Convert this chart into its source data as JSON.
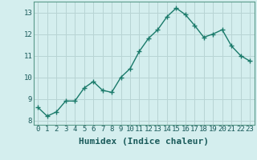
{
  "x": [
    0,
    1,
    2,
    3,
    4,
    5,
    6,
    7,
    8,
    9,
    10,
    11,
    12,
    13,
    14,
    15,
    16,
    17,
    18,
    19,
    20,
    21,
    22,
    23
  ],
  "y": [
    8.6,
    8.2,
    8.4,
    8.9,
    8.9,
    9.5,
    9.8,
    9.4,
    9.3,
    10.0,
    10.4,
    11.2,
    11.8,
    12.2,
    12.8,
    13.2,
    12.9,
    12.4,
    11.85,
    12.0,
    12.2,
    11.45,
    11.0,
    10.75
  ],
  "line_color": "#1a7a6a",
  "marker": "+",
  "marker_size": 4,
  "marker_lw": 1.0,
  "bg_color": "#d4eeee",
  "grid_color": "#b8d4d4",
  "xlabel": "Humidex (Indice chaleur)",
  "ylim": [
    7.8,
    13.5
  ],
  "xlim": [
    -0.5,
    23.5
  ],
  "yticks": [
    8,
    9,
    10,
    11,
    12,
    13
  ],
  "xticks": [
    0,
    1,
    2,
    3,
    4,
    5,
    6,
    7,
    8,
    9,
    10,
    11,
    12,
    13,
    14,
    15,
    16,
    17,
    18,
    19,
    20,
    21,
    22,
    23
  ],
  "tick_label_fontsize": 6.5,
  "xlabel_fontsize": 8,
  "line_width": 1.0,
  "spine_color": "#5a9a8a"
}
